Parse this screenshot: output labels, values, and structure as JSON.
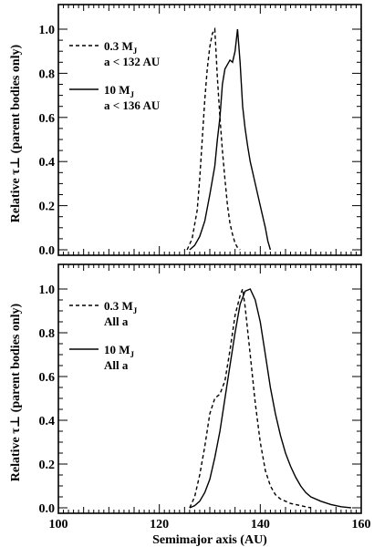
{
  "chart_data": [
    {
      "type": "line",
      "panel": "top",
      "xlabel": "",
      "ylabel": "Relative τ⊥ (parent bodies only)",
      "xlim": [
        100,
        160
      ],
      "ylim": [
        0.0,
        1.05
      ],
      "yticks": [
        "0.0",
        "0.2",
        "0.4",
        "0.6",
        "0.8",
        "1.0"
      ],
      "xticks": [],
      "legend_position": "top-left",
      "series": [
        {
          "name": "0.3 M_J",
          "legend_line1": "0.3 M",
          "legend_sub": "J",
          "legend_line2": "a < 132 AU",
          "style": "dashed",
          "x": [
            125.5,
            126.5,
            127.5,
            128,
            128.5,
            129,
            129.5,
            130,
            130.5,
            131,
            131.5,
            132,
            132.5,
            133,
            133.5,
            134,
            134.5,
            135,
            135.5,
            136
          ],
          "y": [
            0.0,
            0.05,
            0.18,
            0.32,
            0.5,
            0.68,
            0.82,
            0.92,
            0.98,
            1.0,
            0.78,
            0.6,
            0.45,
            0.32,
            0.2,
            0.12,
            0.07,
            0.03,
            0.01,
            0.0
          ]
        },
        {
          "name": "10 M_J",
          "legend_line1": "10 M",
          "legend_sub": "J",
          "legend_line2": "a < 136 AU",
          "style": "solid",
          "x": [
            126,
            127,
            128,
            129,
            130,
            131,
            131.5,
            132,
            132.5,
            133,
            133.5,
            134,
            134.5,
            135,
            135.5,
            136,
            136.5,
            137,
            137.5,
            138,
            139,
            140,
            141,
            141.5,
            142
          ],
          "y": [
            0.0,
            0.02,
            0.06,
            0.13,
            0.25,
            0.38,
            0.5,
            0.6,
            0.75,
            0.82,
            0.84,
            0.86,
            0.85,
            0.9,
            1.0,
            0.85,
            0.65,
            0.55,
            0.47,
            0.4,
            0.3,
            0.2,
            0.1,
            0.04,
            0.0
          ]
        }
      ]
    },
    {
      "type": "line",
      "panel": "bottom",
      "xlabel": "Semimajor axis (AU)",
      "ylabel": "Relative τ⊥ (parent bodies only)",
      "xlim": [
        100,
        160
      ],
      "ylim": [
        0.0,
        1.05
      ],
      "yticks": [
        "0.0",
        "0.2",
        "0.4",
        "0.6",
        "0.8",
        "1.0"
      ],
      "xticks": [
        "100",
        "120",
        "140",
        "160"
      ],
      "legend_position": "top-left",
      "series": [
        {
          "name": "0.3 M_J",
          "legend_line1": "0.3 M",
          "legend_sub": "J",
          "legend_line2": "All a",
          "style": "dashed",
          "x": [
            126,
            127,
            128,
            129,
            130,
            131,
            132,
            133,
            134,
            135,
            136,
            136.5,
            137,
            138,
            139,
            140,
            141,
            142,
            143,
            144,
            145,
            146,
            147,
            148,
            149,
            150
          ],
          "y": [
            0.0,
            0.05,
            0.15,
            0.28,
            0.43,
            0.5,
            0.52,
            0.58,
            0.72,
            0.88,
            0.97,
            1.0,
            0.92,
            0.7,
            0.48,
            0.3,
            0.17,
            0.1,
            0.06,
            0.04,
            0.03,
            0.02,
            0.015,
            0.01,
            0.005,
            0.0
          ]
        },
        {
          "name": "10 M_J",
          "legend_line1": "10 M",
          "legend_sub": "J",
          "legend_line2": "All a",
          "style": "solid",
          "x": [
            126,
            127,
            128,
            129,
            130,
            131,
            132,
            133,
            134,
            135,
            136,
            137,
            138,
            139,
            140,
            141,
            142,
            143,
            144,
            145,
            146,
            147,
            148,
            149,
            150,
            152,
            154,
            156,
            158
          ],
          "y": [
            0.0,
            0.01,
            0.03,
            0.07,
            0.13,
            0.23,
            0.35,
            0.5,
            0.65,
            0.8,
            0.93,
            0.99,
            1.0,
            0.95,
            0.85,
            0.7,
            0.55,
            0.43,
            0.33,
            0.25,
            0.19,
            0.14,
            0.1,
            0.07,
            0.05,
            0.03,
            0.015,
            0.005,
            0.0
          ]
        }
      ]
    }
  ]
}
